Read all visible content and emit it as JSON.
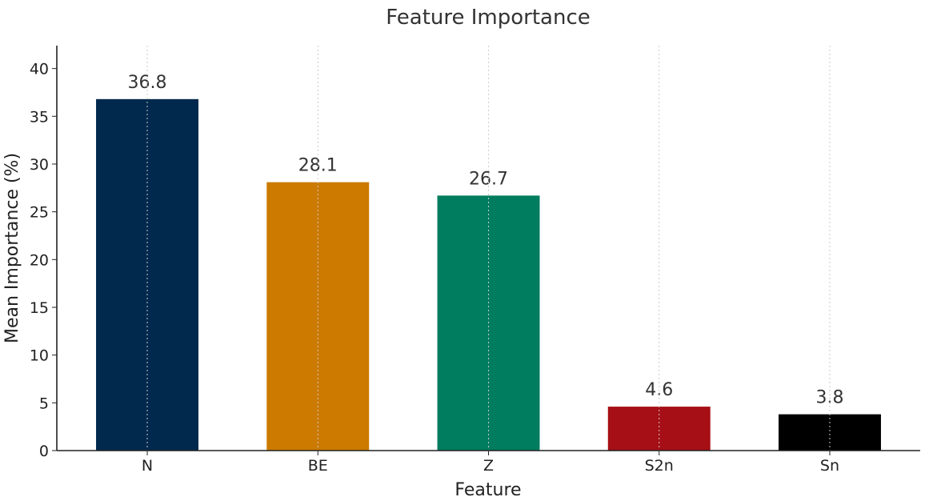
{
  "chart_data": {
    "type": "bar",
    "title": "Feature Importance",
    "xlabel": "Feature",
    "ylabel": "Mean Importance (%)",
    "categories": [
      "N",
      "BE",
      "Z",
      "S2n",
      "Sn"
    ],
    "values": [
      36.8,
      28.1,
      26.7,
      4.6,
      3.8
    ],
    "data_labels": [
      "36.8",
      "28.1",
      "26.7",
      "4.6",
      "3.8"
    ],
    "colors": [
      "#00294d",
      "#cc7a00",
      "#007c5e",
      "#a50f15",
      "#000000"
    ],
    "ylim": [
      0,
      42.4
    ],
    "yticks": [
      0,
      5,
      10,
      15,
      20,
      25,
      30,
      35,
      40
    ],
    "grid": "vertical dotted at category centers",
    "legend": "none"
  }
}
